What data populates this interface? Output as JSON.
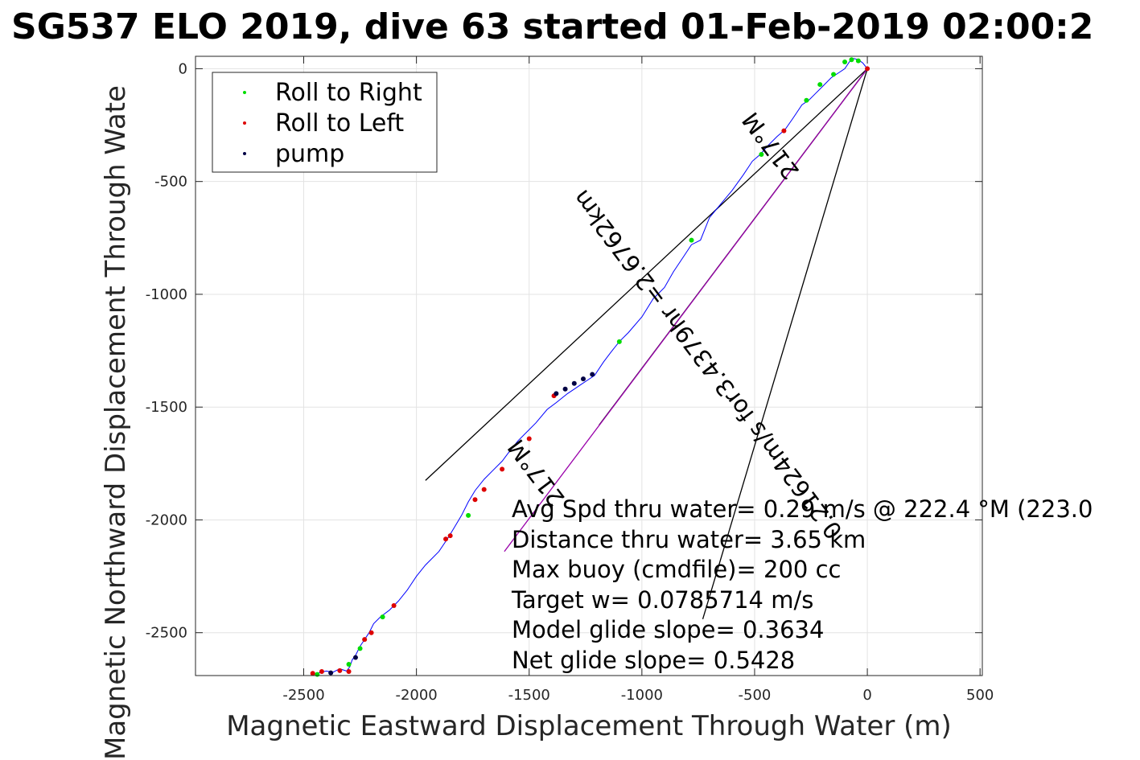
{
  "chart_data": {
    "type": "line",
    "title": "SG537 ELO 2019, dive 63 started 01-Feb-2019 02:00:2",
    "xlabel": "Magnetic Eastward Displacement Through Water (m)",
    "ylabel": "Magnetic Northward Displacement Through Wate",
    "xlim": [
      -2980,
      510
    ],
    "ylim": [
      -2690,
      55
    ],
    "xticks": [
      -2500,
      -2000,
      -1500,
      -1000,
      -500,
      0,
      500
    ],
    "yticks": [
      -2500,
      -2000,
      -1500,
      -1000,
      -500,
      0
    ],
    "grid": true,
    "legend_position": "top-left",
    "legend": [
      {
        "name": "Roll to Right",
        "color": "#00dd00"
      },
      {
        "name": "Roll to Left",
        "color": "#dd0000"
      },
      {
        "name": "pump",
        "color": "#000044"
      }
    ],
    "series": [
      {
        "color": "#0000ff",
        "x": [
          -2450,
          -2440,
          -2400,
          -2370,
          -2340,
          -2310,
          -2295,
          -2285,
          -2270,
          -2250,
          -2230,
          -2210,
          -2190,
          -2160,
          -2120,
          -2100,
          -2080,
          -2040,
          -2000,
          -1960,
          -1900,
          -1860,
          -1830,
          -1800,
          -1770,
          -1740,
          -1700,
          -1660,
          -1620,
          -1590,
          -1550,
          -1520,
          -1470,
          -1420,
          -1380,
          -1330,
          -1300,
          -1270,
          -1240,
          -1210,
          -1170,
          -1140,
          -1100,
          -1060,
          -1000,
          -950,
          -900,
          -860,
          -820,
          -780,
          -740,
          -700,
          -650,
          -600,
          -550,
          -510,
          -475,
          -440,
          -400,
          -365,
          -330,
          -290,
          -260,
          -230,
          -190,
          -160,
          -130,
          -100,
          -80,
          -60,
          -40,
          -20,
          0
        ],
        "y": [
          -2690,
          -2680,
          -2670,
          -2675,
          -2660,
          -2670,
          -2650,
          -2620,
          -2600,
          -2560,
          -2530,
          -2500,
          -2460,
          -2430,
          -2400,
          -2380,
          -2360,
          -2310,
          -2250,
          -2200,
          -2140,
          -2080,
          -2030,
          -1980,
          -1920,
          -1870,
          -1820,
          -1780,
          -1740,
          -1700,
          -1650,
          -1620,
          -1570,
          -1510,
          -1480,
          -1440,
          -1420,
          -1400,
          -1380,
          -1360,
          -1300,
          -1260,
          -1210,
          -1170,
          -1100,
          -1020,
          -970,
          -900,
          -840,
          -780,
          -760,
          -660,
          -600,
          -540,
          -470,
          -410,
          -380,
          -340,
          -300,
          -270,
          -220,
          -160,
          -140,
          -110,
          -70,
          -40,
          -20,
          0,
          30,
          45,
          40,
          25,
          0
        ]
      }
    ],
    "roll_right_points": [
      {
        "x": -2440,
        "y": -2685
      },
      {
        "x": -2300,
        "y": -2640
      },
      {
        "x": -2250,
        "y": -2570
      },
      {
        "x": -2150,
        "y": -2430
      },
      {
        "x": -1770,
        "y": -1980
      },
      {
        "x": -1100,
        "y": -1210
      },
      {
        "x": -780,
        "y": -760
      },
      {
        "x": -470,
        "y": -380
      },
      {
        "x": -270,
        "y": -140
      },
      {
        "x": -210,
        "y": -70
      },
      {
        "x": -150,
        "y": -25
      },
      {
        "x": -100,
        "y": 30
      },
      {
        "x": -70,
        "y": 40
      },
      {
        "x": -40,
        "y": 35
      }
    ],
    "roll_left_points": [
      {
        "x": -2460,
        "y": -2680
      },
      {
        "x": -2420,
        "y": -2672
      },
      {
        "x": -2340,
        "y": -2668
      },
      {
        "x": -2300,
        "y": -2672
      },
      {
        "x": -2230,
        "y": -2530
      },
      {
        "x": -2200,
        "y": -2500
      },
      {
        "x": -2100,
        "y": -2380
      },
      {
        "x": -1870,
        "y": -2085
      },
      {
        "x": -1850,
        "y": -2070
      },
      {
        "x": -1740,
        "y": -1910
      },
      {
        "x": -1700,
        "y": -1865
      },
      {
        "x": -1620,
        "y": -1775
      },
      {
        "x": -1500,
        "y": -1640
      },
      {
        "x": -1390,
        "y": -1450
      },
      {
        "x": -370,
        "y": -275
      },
      {
        "x": 0,
        "y": 0
      }
    ],
    "pump_points": [
      {
        "x": -2380,
        "y": -2678
      },
      {
        "x": -2270,
        "y": -2610
      },
      {
        "x": -1380,
        "y": -1440
      },
      {
        "x": -1340,
        "y": -1420
      },
      {
        "x": -1300,
        "y": -1395
      },
      {
        "x": -1260,
        "y": -1375
      },
      {
        "x": -1220,
        "y": -1355
      }
    ],
    "reference_lines": [
      {
        "color": "#000000",
        "x": [
          0,
          -1960
        ],
        "y": [
          0,
          -1825
        ]
      },
      {
        "color": "#000000",
        "x": [
          0,
          -1190
        ],
        "y": [
          0,
          -1580
        ]
      },
      {
        "color": "#000000",
        "x": [
          0,
          -730
        ],
        "y": [
          0,
          -2440
        ]
      },
      {
        "color": "#9900aa",
        "x": [
          0,
          -1610
        ],
        "y": [
          0,
          -2140
        ]
      }
    ],
    "rotated_annotations": [
      {
        "text": "0.21624m/s for3.4379hr =2.6762km",
        "x": -680,
        "y": -1290
      },
      {
        "text": "217°M",
        "x": -400,
        "y": -320
      },
      {
        "text": "217°M",
        "x": -1440,
        "y": -1770
      }
    ],
    "annotations": [
      "Avg Spd thru water=  0.29 m/s @ 222.4 °M (223.0",
      "Distance thru water=  3.65 km",
      "Max buoy (cmdfile)= 200 cc",
      "Target w= 0.0785714 m/s",
      "Model glide slope= 0.3634",
      "Net glide slope= 0.5428"
    ]
  }
}
